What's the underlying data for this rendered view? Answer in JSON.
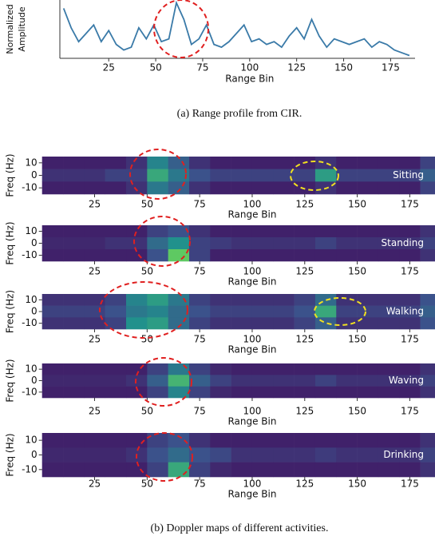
{
  "captions": [
    "(a) Range profile from CIR.",
    "(b) Doppler maps of different activities."
  ],
  "chart_data": [
    {
      "type": "line",
      "x_label": "Range Bin",
      "y_label": [
        "Normalized",
        "Amplitude"
      ],
      "xlim": [
        -1,
        188
      ],
      "ylim": [
        0,
        1.05
      ],
      "xticks": [
        25,
        50,
        75,
        100,
        125,
        150,
        175
      ],
      "series": [
        {
          "color": "#3a7aa8",
          "x": [
            1,
            5,
            9,
            13,
            17,
            21,
            25,
            29,
            33,
            37,
            41,
            45,
            49,
            53,
            57,
            61,
            65,
            69,
            73,
            77,
            81,
            85,
            89,
            93,
            97,
            101,
            105,
            109,
            113,
            117,
            121,
            125,
            129,
            133,
            137,
            141,
            145,
            149,
            153,
            157,
            161,
            165,
            169,
            173,
            177,
            181,
            185
          ],
          "values": [
            0.9,
            0.55,
            0.3,
            0.45,
            0.6,
            0.3,
            0.5,
            0.25,
            0.15,
            0.2,
            0.55,
            0.35,
            0.6,
            0.3,
            0.35,
            1.0,
            0.7,
            0.25,
            0.35,
            0.6,
            0.25,
            0.2,
            0.3,
            0.45,
            0.6,
            0.3,
            0.35,
            0.25,
            0.3,
            0.2,
            0.4,
            0.55,
            0.35,
            0.7,
            0.4,
            0.2,
            0.35,
            0.3,
            0.25,
            0.3,
            0.35,
            0.2,
            0.3,
            0.25,
            0.15,
            0.1,
            0.05
          ]
        }
      ]
    },
    {
      "type": "heatmap",
      "annotation": "Sitting",
      "x_label": "Range Bin",
      "y_label": "Freq (Hz)",
      "xlim": [
        0,
        187
      ],
      "ylim": [
        -15,
        15
      ],
      "xticks": [
        25,
        50,
        75,
        100,
        125,
        150,
        175
      ],
      "yticks": [
        10,
        0,
        -10
      ],
      "x": [
        5,
        15,
        25,
        35,
        45,
        55,
        65,
        75,
        85,
        95,
        105,
        115,
        125,
        135,
        145,
        155,
        165,
        175,
        185
      ],
      "y": [
        10,
        0,
        -10
      ],
      "values": [
        [
          0.1,
          0.1,
          0.1,
          0.1,
          0.15,
          0.45,
          0.3,
          0.15,
          0.1,
          0.1,
          0.1,
          0.1,
          0.1,
          0.15,
          0.1,
          0.1,
          0.1,
          0.1,
          0.2
        ],
        [
          0.15,
          0.15,
          0.15,
          0.2,
          0.2,
          0.6,
          0.4,
          0.25,
          0.2,
          0.2,
          0.2,
          0.2,
          0.2,
          0.55,
          0.2,
          0.2,
          0.2,
          0.2,
          0.3
        ],
        [
          0.1,
          0.1,
          0.1,
          0.1,
          0.15,
          0.4,
          0.3,
          0.15,
          0.1,
          0.1,
          0.1,
          0.1,
          0.1,
          0.15,
          0.1,
          0.1,
          0.1,
          0.1,
          0.2
        ]
      ]
    },
    {
      "type": "heatmap",
      "annotation": "Standing",
      "x_label": "Range Bin",
      "y_label": "Freq (Hz)",
      "xlim": [
        0,
        187
      ],
      "ylim": [
        -15,
        15
      ],
      "xticks": [
        25,
        50,
        75,
        100,
        125,
        150,
        175
      ],
      "yticks": [
        10,
        0,
        -10
      ],
      "x": [
        5,
        15,
        25,
        35,
        45,
        55,
        65,
        75,
        85,
        95,
        105,
        115,
        125,
        135,
        145,
        155,
        165,
        175,
        185
      ],
      "y": [
        10,
        0,
        -10
      ],
      "values": [
        [
          0.1,
          0.1,
          0.1,
          0.1,
          0.1,
          0.2,
          0.25,
          0.15,
          0.1,
          0.1,
          0.1,
          0.1,
          0.1,
          0.1,
          0.1,
          0.1,
          0.1,
          0.1,
          0.15
        ],
        [
          0.12,
          0.12,
          0.12,
          0.15,
          0.15,
          0.35,
          0.5,
          0.2,
          0.18,
          0.15,
          0.15,
          0.15,
          0.15,
          0.2,
          0.15,
          0.15,
          0.15,
          0.15,
          0.2
        ],
        [
          0.1,
          0.1,
          0.1,
          0.1,
          0.1,
          0.25,
          0.75,
          0.2,
          0.1,
          0.1,
          0.1,
          0.1,
          0.1,
          0.1,
          0.1,
          0.1,
          0.1,
          0.1,
          0.15
        ]
      ]
    },
    {
      "type": "heatmap",
      "annotation": "Walking",
      "x_label": "Range Bin",
      "y_label": "Freq (Hz)",
      "xlim": [
        0,
        187
      ],
      "ylim": [
        -15,
        15
      ],
      "xticks": [
        25,
        50,
        75,
        100,
        125,
        150,
        175
      ],
      "yticks": [
        10,
        0,
        -10
      ],
      "x": [
        5,
        15,
        25,
        35,
        45,
        55,
        65,
        75,
        85,
        95,
        105,
        115,
        125,
        135,
        145,
        155,
        165,
        175,
        185
      ],
      "y": [
        10,
        0,
        -10
      ],
      "values": [
        [
          0.15,
          0.15,
          0.15,
          0.2,
          0.45,
          0.55,
          0.4,
          0.2,
          0.15,
          0.15,
          0.15,
          0.15,
          0.2,
          0.35,
          0.15,
          0.15,
          0.15,
          0.15,
          0.25
        ],
        [
          0.2,
          0.2,
          0.2,
          0.25,
          0.4,
          0.45,
          0.35,
          0.25,
          0.2,
          0.2,
          0.2,
          0.2,
          0.25,
          0.6,
          0.2,
          0.2,
          0.2,
          0.2,
          0.3
        ],
        [
          0.15,
          0.15,
          0.15,
          0.2,
          0.5,
          0.55,
          0.35,
          0.2,
          0.15,
          0.15,
          0.15,
          0.15,
          0.2,
          0.3,
          0.15,
          0.15,
          0.15,
          0.15,
          0.25
        ]
      ]
    },
    {
      "type": "heatmap",
      "annotation": "Waving",
      "x_label": "Range Bin",
      "y_label": "Freq (Hz)",
      "xlim": [
        0,
        187
      ],
      "ylim": [
        -15,
        15
      ],
      "xticks": [
        25,
        50,
        75,
        100,
        125,
        150,
        175
      ],
      "yticks": [
        10,
        0,
        -10
      ],
      "x": [
        5,
        15,
        25,
        35,
        45,
        55,
        65,
        75,
        85,
        95,
        105,
        115,
        125,
        135,
        145,
        155,
        165,
        175,
        185
      ],
      "y": [
        10,
        0,
        -10
      ],
      "values": [
        [
          0.1,
          0.1,
          0.1,
          0.1,
          0.1,
          0.2,
          0.4,
          0.2,
          0.12,
          0.1,
          0.1,
          0.1,
          0.1,
          0.1,
          0.1,
          0.1,
          0.1,
          0.1,
          0.15
        ],
        [
          0.12,
          0.12,
          0.12,
          0.12,
          0.15,
          0.3,
          0.65,
          0.3,
          0.2,
          0.15,
          0.15,
          0.15,
          0.15,
          0.2,
          0.15,
          0.15,
          0.15,
          0.15,
          0.2
        ],
        [
          0.1,
          0.1,
          0.1,
          0.1,
          0.1,
          0.2,
          0.45,
          0.2,
          0.12,
          0.1,
          0.1,
          0.1,
          0.1,
          0.1,
          0.1,
          0.1,
          0.1,
          0.1,
          0.15
        ]
      ]
    },
    {
      "type": "heatmap",
      "annotation": "Drinking",
      "x_label": "Range Bin",
      "y_label": "Freq (Hz)",
      "xlim": [
        0,
        187
      ],
      "ylim": [
        -15,
        15
      ],
      "xticks": [
        25,
        50,
        75,
        100,
        125,
        150,
        175
      ],
      "yticks": [
        10,
        0,
        -10
      ],
      "x": [
        5,
        15,
        25,
        35,
        45,
        55,
        65,
        75,
        85,
        95,
        105,
        115,
        125,
        135,
        145,
        155,
        165,
        175,
        185
      ],
      "y": [
        10,
        0,
        -10
      ],
      "values": [
        [
          0.1,
          0.1,
          0.1,
          0.1,
          0.1,
          0.2,
          0.25,
          0.15,
          0.1,
          0.1,
          0.1,
          0.1,
          0.1,
          0.1,
          0.1,
          0.1,
          0.1,
          0.1,
          0.15
        ],
        [
          0.12,
          0.12,
          0.12,
          0.12,
          0.15,
          0.25,
          0.35,
          0.25,
          0.22,
          0.15,
          0.15,
          0.15,
          0.15,
          0.18,
          0.15,
          0.15,
          0.15,
          0.15,
          0.2
        ],
        [
          0.1,
          0.1,
          0.1,
          0.1,
          0.1,
          0.2,
          0.6,
          0.2,
          0.12,
          0.1,
          0.1,
          0.1,
          0.1,
          0.1,
          0.1,
          0.1,
          0.1,
          0.1,
          0.15
        ]
      ]
    }
  ]
}
